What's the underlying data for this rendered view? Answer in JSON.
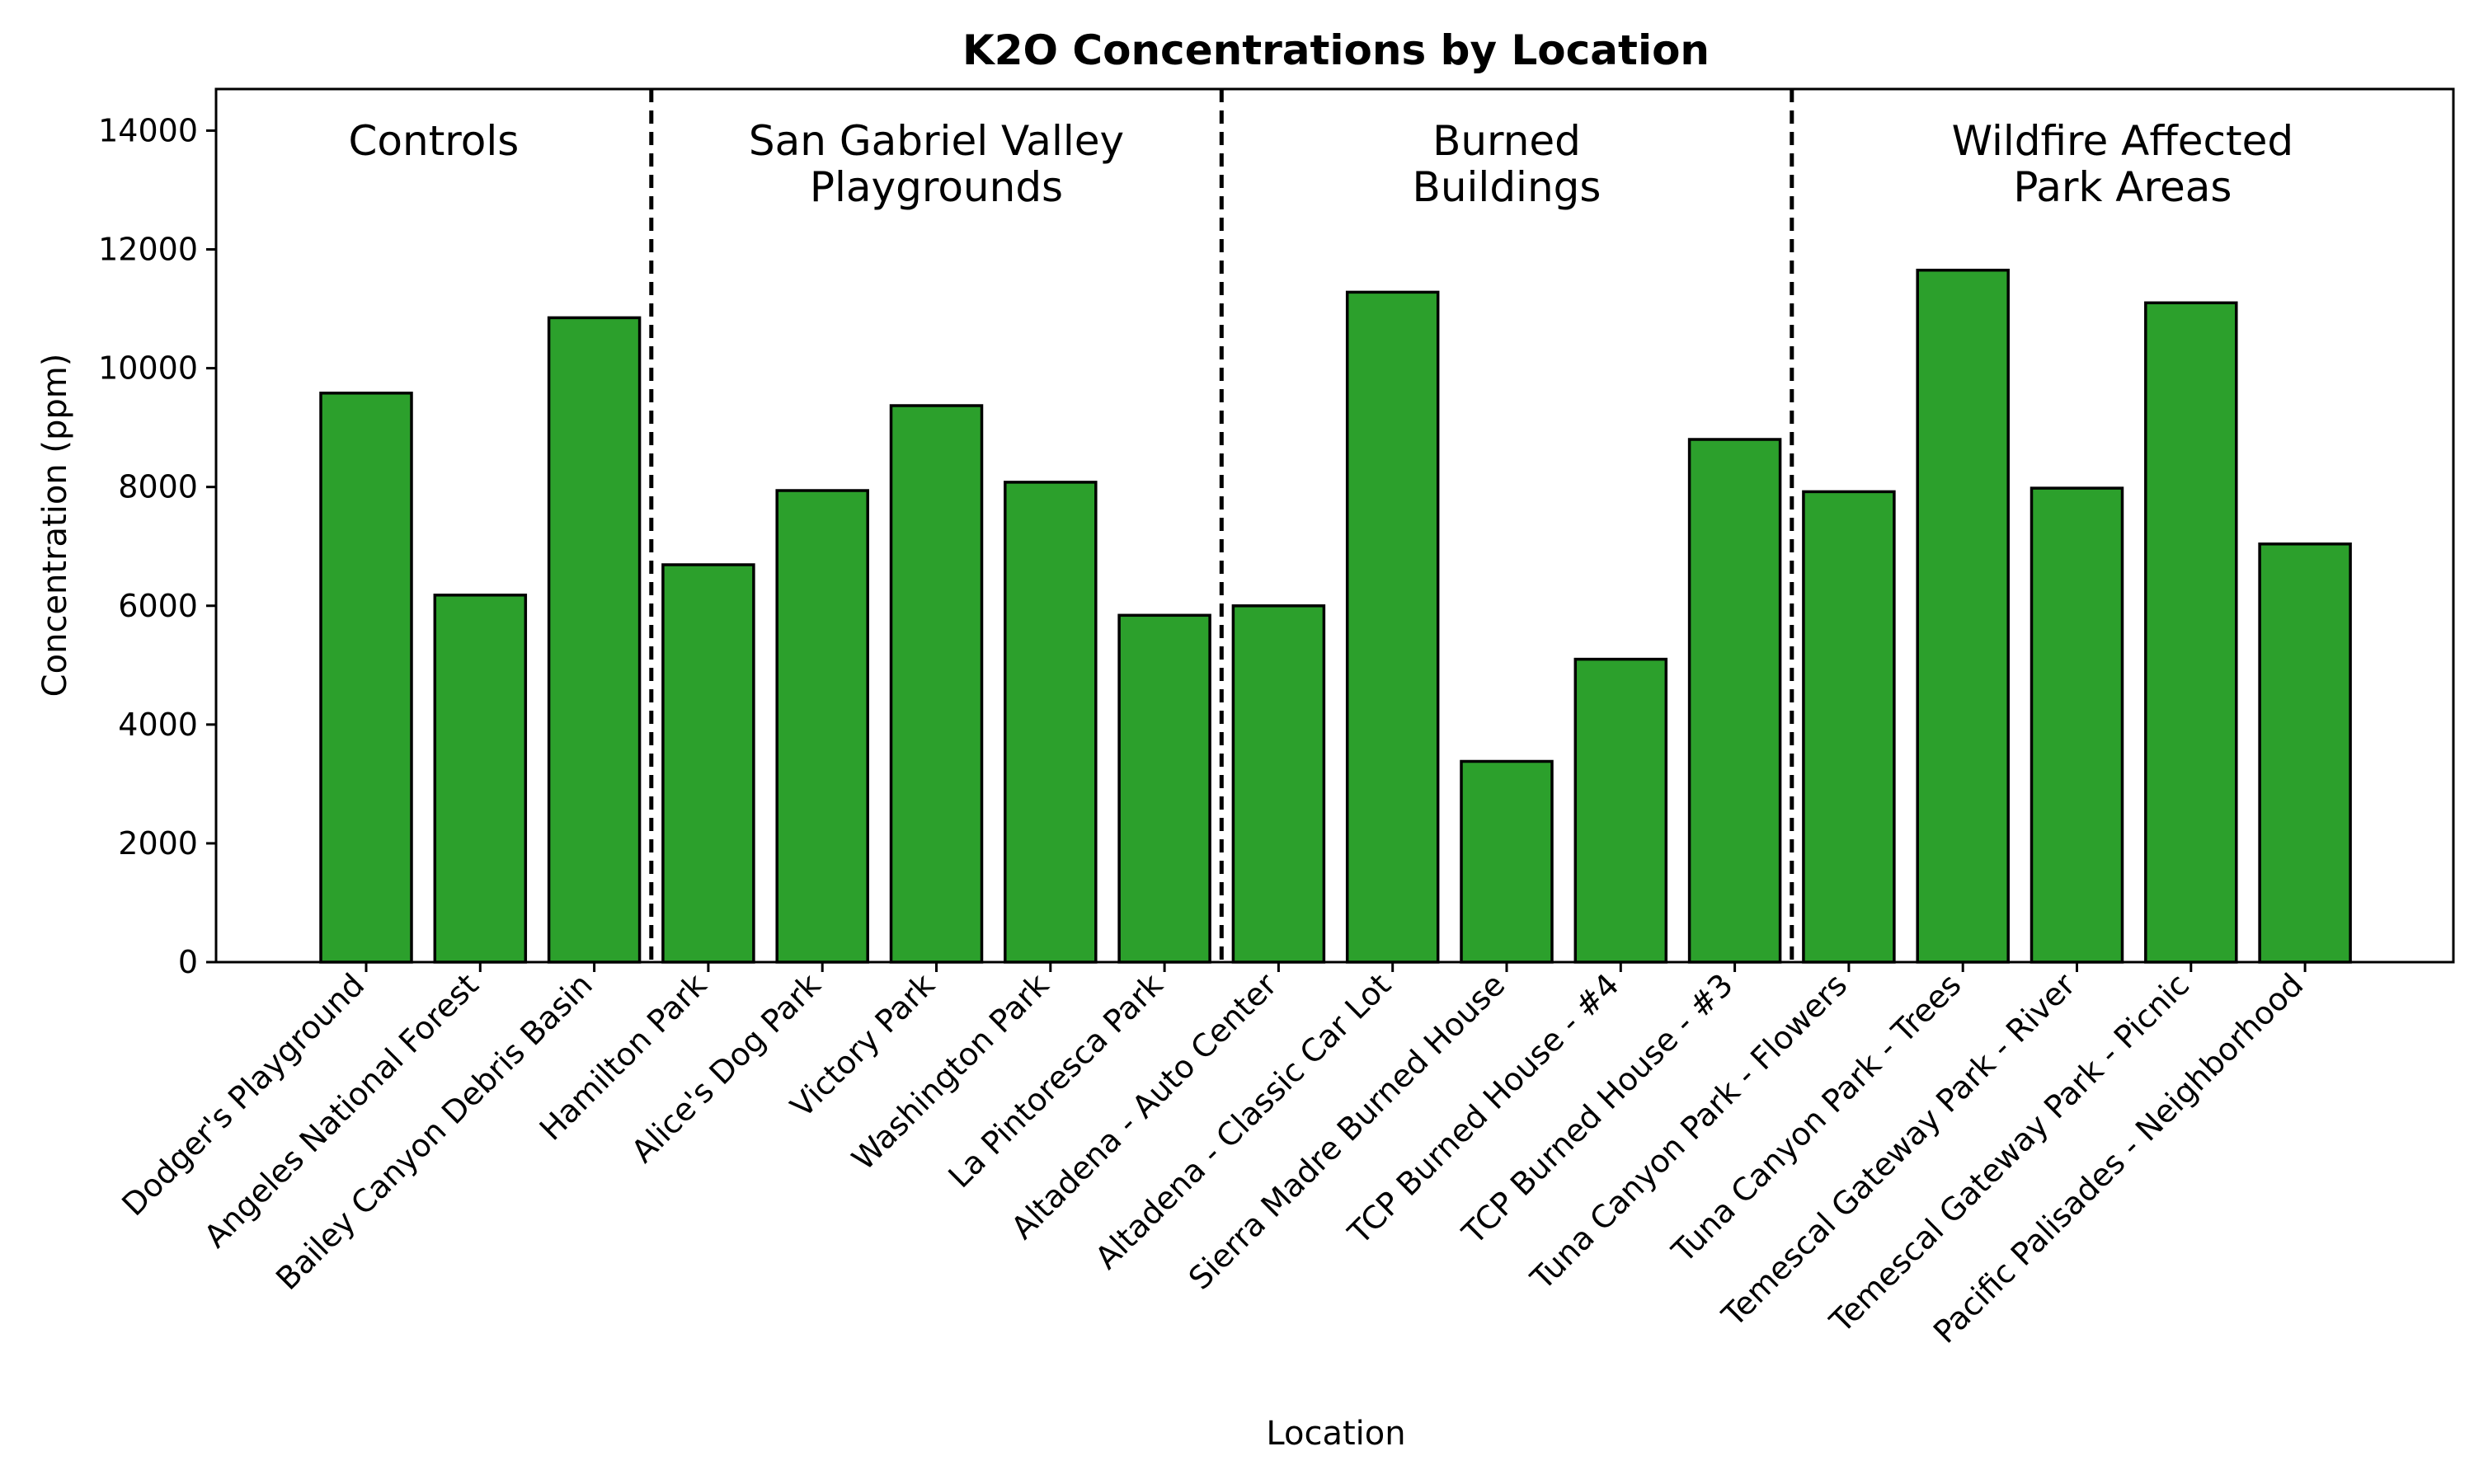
{
  "chart_data": {
    "type": "bar",
    "title": "K2O Concentrations by Location",
    "xlabel": "Location",
    "ylabel": "Concentration (ppm)",
    "ylim": [
      0,
      14700
    ],
    "yticks": [
      0,
      2000,
      4000,
      6000,
      8000,
      10000,
      12000,
      14000
    ],
    "grid": false,
    "bar_color": "#2ca02c",
    "edge_color": "#000000",
    "categories": [
      "Dodger's Playground",
      "Angeles National Forest",
      "Bailey Canyon Debris Basin",
      "Hamilton Park",
      "Alice's Dog Park",
      "Victory Park",
      "Washington Park",
      "La Pintoresca Park",
      "Altadena - Auto Center",
      "Altadena - Classic Car Lot",
      "Sierra Madre Burned House",
      "TCP Burned House - #4",
      "TCP Burned House - #3",
      "Tuna Canyon Park - Flowers",
      "Tuna Canyon Park - Trees",
      "Temescal Gateway Park - River",
      "Temescal Gateway Park - Picnic",
      "Pacific Palisades - Neighborhood"
    ],
    "values": [
      9580,
      6180,
      10850,
      6690,
      7940,
      9370,
      8080,
      5840,
      6000,
      11280,
      3380,
      5100,
      8800,
      7920,
      11650,
      7980,
      11100,
      7040
    ],
    "groups": [
      {
        "label_lines": [
          "Controls"
        ],
        "start": 0,
        "end": 2
      },
      {
        "label_lines": [
          "San Gabriel Valley",
          "Playgrounds"
        ],
        "start": 3,
        "end": 7
      },
      {
        "label_lines": [
          "Burned",
          "Buildings"
        ],
        "start": 8,
        "end": 12
      },
      {
        "label_lines": [
          "Wildfire Affected",
          "Park Areas"
        ],
        "start": 13,
        "end": 17
      }
    ]
  }
}
